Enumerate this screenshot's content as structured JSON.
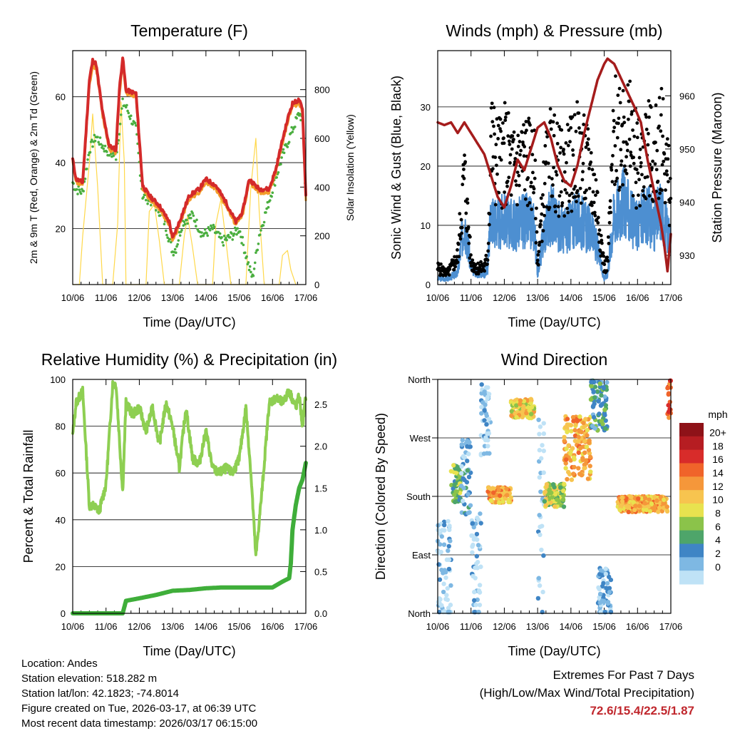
{
  "chart_data": [
    {
      "type": "line",
      "title": "Temperature (F)",
      "xlabel": "Time (Day/UTC)",
      "ylabel": "2m & 9m T (Red, Orange) & 2m Td (Green)",
      "y2label": "Solar Insolation (Yellow)",
      "x_ticks": [
        "10/06",
        "11/06",
        "12/06",
        "13/06",
        "14/06",
        "15/06",
        "16/06",
        "17/06"
      ],
      "xlim": [
        0,
        7
      ],
      "ylim": [
        3,
        74
      ],
      "y_ticks": [
        20,
        40,
        60
      ],
      "y2lim": [
        0,
        960
      ],
      "y2_ticks": [
        0,
        200,
        400,
        600,
        800
      ],
      "grid": true,
      "series": [
        {
          "name": "2m T",
          "color": "#d42a2a",
          "x": [
            0,
            0.1,
            0.3,
            0.5,
            0.6,
            0.7,
            0.9,
            1.1,
            1.3,
            1.4,
            1.5,
            1.6,
            1.9,
            2.1,
            2.3,
            2.6,
            2.9,
            3.0,
            3.2,
            3.5,
            3.8,
            4.0,
            4.3,
            4.6,
            4.9,
            5.1,
            5.3,
            5.6,
            5.9,
            6.1,
            6.3,
            6.5,
            6.6,
            6.8,
            6.9,
            7.0
          ],
          "y": [
            41,
            35,
            34,
            65,
            71,
            70,
            55,
            45,
            44,
            62,
            72,
            62,
            61,
            33,
            30,
            27,
            22,
            17,
            22,
            30,
            32,
            35,
            33,
            28,
            22,
            25,
            35,
            32,
            32,
            38,
            47,
            55,
            58,
            59,
            56,
            30
          ]
        },
        {
          "name": "9m T",
          "color": "#f39c2a",
          "x": [
            0,
            0.1,
            0.3,
            0.5,
            0.6,
            0.7,
            0.9,
            1.1,
            1.3,
            1.4,
            1.5,
            1.6,
            1.9,
            2.1,
            2.3,
            2.6,
            2.9,
            3.0,
            3.2,
            3.5,
            3.8,
            4.0,
            4.3,
            4.6,
            4.9,
            5.1,
            5.3,
            5.6,
            5.9,
            6.1,
            6.3,
            6.5,
            6.6,
            6.8,
            6.9,
            7.0
          ],
          "y": [
            40,
            34,
            33,
            63,
            69,
            69,
            54,
            44,
            43,
            60,
            70,
            61,
            60,
            32,
            29,
            26,
            21,
            16,
            21,
            29,
            31,
            34,
            32,
            27,
            21,
            24,
            34,
            31,
            31,
            37,
            46,
            54,
            57,
            58,
            55,
            29
          ]
        },
        {
          "name": "2m Td",
          "color": "#4aae3f",
          "x": [
            0,
            0.1,
            0.3,
            0.5,
            0.7,
            0.9,
            1.1,
            1.3,
            1.4,
            1.5,
            1.6,
            1.9,
            2.1,
            2.4,
            2.7,
            3.0,
            3.1,
            3.3,
            3.6,
            3.9,
            4.2,
            4.5,
            4.8,
            5.0,
            5.3,
            5.4,
            5.6,
            6.0,
            6.3,
            6.6,
            6.8,
            6.9,
            7.0
          ],
          "y": [
            34,
            32,
            31,
            44,
            48,
            45,
            43,
            42,
            50,
            58,
            57,
            50,
            30,
            28,
            24,
            13,
            14,
            22,
            24,
            18,
            20,
            16,
            18,
            20,
            8,
            5,
            18,
            32,
            42,
            50,
            55,
            53,
            28
          ]
        },
        {
          "name": "Solar Insolation",
          "color": "#ffd84a",
          "axis": "y2",
          "x": [
            0,
            0.2,
            0.3,
            0.5,
            0.6,
            0.75,
            0.9,
            1.0,
            1.2,
            1.35,
            1.45,
            1.55,
            1.6,
            1.8,
            2.2,
            2.3,
            2.45,
            2.6,
            2.75,
            3.2,
            3.35,
            3.45,
            3.6,
            3.75,
            4.2,
            4.3,
            4.45,
            4.6,
            4.75,
            5.2,
            5.35,
            5.5,
            5.6,
            5.75,
            6.2,
            6.3,
            6.45,
            6.55,
            6.7
          ],
          "y": [
            0,
            0,
            200,
            500,
            700,
            400,
            0,
            0,
            0,
            250,
            750,
            500,
            0,
            0,
            0,
            300,
            330,
            180,
            0,
            0,
            200,
            280,
            150,
            0,
            0,
            250,
            350,
            180,
            0,
            0,
            400,
            600,
            300,
            0,
            0,
            120,
            140,
            60,
            0
          ]
        }
      ]
    },
    {
      "type": "scatter",
      "title": "Winds (mph) & Pressure (mb)",
      "xlabel": "Time (Day/UTC)",
      "ylabel": "Sonic Wind & Gust (Blue, Black)",
      "y2label": "Station Pressure (Maroon)",
      "x_ticks": [
        "10/06",
        "11/06",
        "12/06",
        "13/06",
        "14/06",
        "15/06",
        "16/06",
        "17/06"
      ],
      "xlim": [
        0,
        7
      ],
      "ylim": [
        0,
        39.5
      ],
      "y_ticks": [
        0,
        10,
        20,
        30
      ],
      "y2lim": [
        924.5,
        968.5
      ],
      "y2_ticks": [
        930,
        940,
        950,
        960
      ],
      "grid": true,
      "series": [
        {
          "name": "Sonic Wind",
          "color": "#4d8fd1",
          "style": "line",
          "x": [
            0,
            0.3,
            0.6,
            0.8,
            1.0,
            1.2,
            1.4,
            1.5,
            1.6,
            1.8,
            2.0,
            2.3,
            2.6,
            2.9,
            3.0,
            3.2,
            3.4,
            3.6,
            3.8,
            4.0,
            4.2,
            4.4,
            4.6,
            4.8,
            5.0,
            5.1,
            5.3,
            5.6,
            5.9,
            6.1,
            6.3,
            6.5,
            6.7,
            6.9,
            7.0
          ],
          "y": [
            1,
            1,
            2,
            11,
            3,
            2,
            2,
            3,
            12,
            10,
            11,
            10,
            11,
            10,
            2,
            9,
            12,
            10,
            9,
            10,
            11,
            10,
            9,
            6,
            1,
            2,
            12,
            14,
            10,
            11,
            12,
            10,
            13,
            9,
            6
          ]
        },
        {
          "name": "Gust",
          "color": "#000000",
          "style": "points",
          "x": [
            0,
            0.3,
            0.6,
            0.8,
            1.0,
            1.2,
            1.4,
            1.5,
            1.6,
            1.8,
            2.0,
            2.3,
            2.6,
            2.9,
            3.0,
            3.2,
            3.4,
            3.6,
            3.8,
            4.0,
            4.2,
            4.4,
            4.6,
            4.8,
            5.0,
            5.1,
            5.3,
            5.6,
            5.9,
            6.1,
            6.3,
            6.5,
            6.7,
            6.9,
            7.0
          ],
          "y": [
            3,
            2,
            5,
            20,
            4,
            3,
            3,
            5,
            26,
            22,
            24,
            21,
            23,
            21,
            4,
            18,
            24,
            21,
            20,
            22,
            24,
            22,
            20,
            14,
            3,
            4,
            27,
            30,
            24,
            21,
            25,
            22,
            28,
            20,
            15
          ]
        },
        {
          "name": "Station Pressure",
          "color": "#a51c1c",
          "style": "line",
          "axis": "y2",
          "x": [
            0,
            0.2,
            0.4,
            0.6,
            0.8,
            1.0,
            1.2,
            1.4,
            1.6,
            1.8,
            2.0,
            2.2,
            2.4,
            2.6,
            2.8,
            3.0,
            3.2,
            3.4,
            3.6,
            3.8,
            4.0,
            4.2,
            4.4,
            4.6,
            4.8,
            5.0,
            5.1,
            5.3,
            5.6,
            5.9,
            6.1,
            6.3,
            6.5,
            6.7,
            6.8,
            6.9,
            7.0
          ],
          "y": [
            955,
            954.5,
            955,
            953,
            955,
            953,
            951,
            949,
            945,
            941,
            939,
            943,
            948,
            946,
            950,
            954,
            955,
            952,
            947,
            944,
            943,
            947,
            953,
            958,
            963,
            966,
            967,
            966,
            962,
            958,
            955,
            948,
            942,
            936,
            932,
            927,
            934
          ]
        }
      ]
    },
    {
      "type": "line",
      "title": "Relative Humidity (%) & Precipitation (in)",
      "xlabel": "Time (Day/UTC)",
      "ylabel": "Percent & Total Rainfall",
      "x_ticks": [
        "10/06",
        "11/06",
        "12/06",
        "13/06",
        "14/06",
        "15/06",
        "16/06",
        "17/06"
      ],
      "xlim": [
        0,
        7
      ],
      "ylim": [
        0,
        100
      ],
      "y_ticks": [
        0,
        20,
        40,
        60,
        80,
        100
      ],
      "y2lim": [
        0,
        2.8
      ],
      "y2_ticks": [
        "0.0",
        "0.5",
        "1.0",
        "1.5",
        "2.0",
        "2.5"
      ],
      "grid": true,
      "series": [
        {
          "name": "Relative Humidity",
          "color": "#8ecf52",
          "x": [
            0,
            0.1,
            0.3,
            0.4,
            0.5,
            0.6,
            0.8,
            1.0,
            1.2,
            1.3,
            1.5,
            1.6,
            1.8,
            2.0,
            2.2,
            2.4,
            2.6,
            2.8,
            3.0,
            3.2,
            3.4,
            3.6,
            3.8,
            4.0,
            4.2,
            4.4,
            4.6,
            4.8,
            5.0,
            5.2,
            5.35,
            5.5,
            5.7,
            5.9,
            6.1,
            6.3,
            6.5,
            6.7,
            6.8,
            6.9,
            7.0
          ],
          "y": [
            76,
            90,
            95,
            70,
            46,
            46,
            44,
            55,
            98,
            98,
            52,
            90,
            85,
            88,
            78,
            88,
            72,
            90,
            80,
            62,
            88,
            66,
            64,
            78,
            62,
            60,
            62,
            60,
            66,
            88,
            60,
            24,
            55,
            90,
            92,
            90,
            95,
            88,
            93,
            80,
            93
          ]
        },
        {
          "name": "Total Precipitation",
          "color": "#3fae3a",
          "axis": "y2",
          "x": [
            0,
            1.0,
            1.5,
            1.6,
            2.0,
            2.5,
            3.0,
            3.5,
            4.0,
            4.5,
            5.0,
            5.5,
            6.0,
            6.3,
            6.5,
            6.55,
            6.6,
            6.7,
            6.8,
            6.9,
            7.0
          ],
          "y": [
            0,
            0,
            0,
            0.15,
            0.18,
            0.22,
            0.27,
            0.28,
            0.3,
            0.31,
            0.31,
            0.31,
            0.31,
            0.38,
            0.42,
            0.6,
            1.0,
            1.3,
            1.5,
            1.6,
            1.8
          ]
        }
      ]
    },
    {
      "type": "scatter",
      "title": "Wind Direction",
      "xlabel": "Time (Day/UTC)",
      "ylabel": "Direction (Colored By Speed)",
      "x_ticks": [
        "10/06",
        "11/06",
        "12/06",
        "13/06",
        "14/06",
        "15/06",
        "16/06",
        "17/06"
      ],
      "xlim": [
        0,
        7
      ],
      "y_categories": [
        "North",
        "East",
        "South",
        "West",
        "North"
      ],
      "ylim": [
        0,
        360
      ],
      "colorbar_title": "mph",
      "colorbar_labels": [
        "20+",
        "18",
        "16",
        "14",
        "12",
        "10",
        "8",
        "6",
        "4",
        "2",
        "0"
      ],
      "colorbar_colors": [
        "#8e1218",
        "#b61d22",
        "#d82c2a",
        "#f0642a",
        "#f5973a",
        "#f7c44f",
        "#e8e24f",
        "#8bc34a",
        "#4ea56a",
        "#3f85c5",
        "#7eb8e3",
        "#bfe2f6"
      ],
      "groups": [
        {
          "x_range": [
            0.0,
            0.4
          ],
          "y_center": 60,
          "y_spread": 90,
          "speed": 1
        },
        {
          "x_range": [
            0.4,
            0.7
          ],
          "y_center": 200,
          "y_spread": 30,
          "speed": 7
        },
        {
          "x_range": [
            0.7,
            1.0
          ],
          "y_center": 210,
          "y_spread": 60,
          "speed": 3
        },
        {
          "x_range": [
            1.0,
            1.3
          ],
          "y_center": 60,
          "y_spread": 100,
          "speed": 1
        },
        {
          "x_range": [
            1.3,
            1.6
          ],
          "y_center": 300,
          "y_spread": 60,
          "speed": 1
        },
        {
          "x_range": [
            1.5,
            2.2
          ],
          "y_center": 182,
          "y_spread": 12,
          "speed": 13
        },
        {
          "x_range": [
            2.2,
            2.9
          ],
          "y_center": 315,
          "y_spread": 15,
          "speed": 11
        },
        {
          "x_range": [
            3.0,
            3.2
          ],
          "y_center": 150,
          "y_spread": 150,
          "speed": 1
        },
        {
          "x_range": [
            3.2,
            3.8
          ],
          "y_center": 182,
          "y_spread": 18,
          "speed": 9
        },
        {
          "x_range": [
            3.8,
            4.6
          ],
          "y_center": 255,
          "y_spread": 50,
          "speed": 13
        },
        {
          "x_range": [
            4.6,
            5.1
          ],
          "y_center": 320,
          "y_spread": 40,
          "speed": 5
        },
        {
          "x_range": [
            4.8,
            5.2
          ],
          "y_center": 30,
          "y_spread": 40,
          "speed": 2
        },
        {
          "x_range": [
            5.4,
            6.9
          ],
          "y_center": 168,
          "y_spread": 12,
          "speed": 13
        },
        {
          "x_range": [
            6.9,
            7.0
          ],
          "y_center": 330,
          "y_spread": 30,
          "speed": 17
        }
      ]
    }
  ],
  "footer": {
    "location": "Location: Andes",
    "elevation": "Station elevation: 518.282 m",
    "latlon": "Station lat/lon: 42.1823; -74.8014",
    "created": "Figure created on Tue, 2026-03-17, at 06:39 UTC",
    "timestamp": "Most recent data timestamp: 2026/03/17 06:15:00"
  },
  "extremes": {
    "title": "Extremes For Past 7 Days",
    "subtitle": "(High/Low/Max Wind/Total Precipitation)",
    "values": "72.6/15.4/22.5/1.87"
  }
}
